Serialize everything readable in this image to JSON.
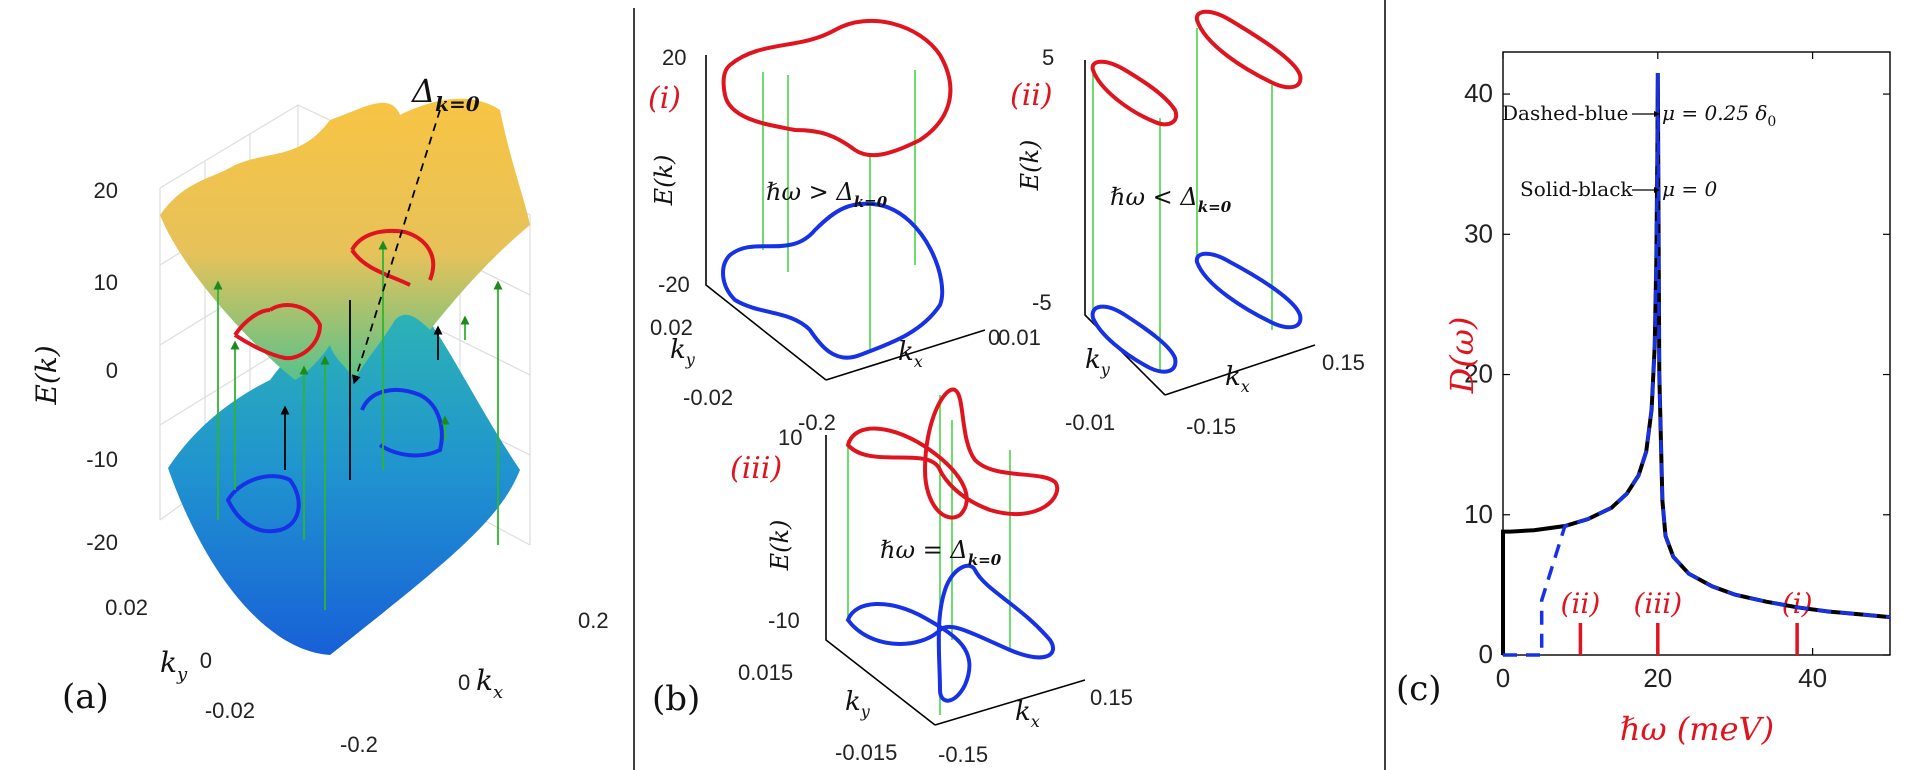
{
  "panels": {
    "a": {
      "label": "(a)",
      "zlabel": "E(k)",
      "zticks": [
        "20",
        "10",
        "0",
        "-10",
        "-20"
      ],
      "kylabel": "k",
      "kysub": "y",
      "kxlabel": "k",
      "kxsub": "x",
      "kyticks": [
        "0.02",
        "0",
        "-0.02"
      ],
      "kxticks": [
        "0.2",
        "0",
        "-0.2"
      ],
      "annotation": "Δ",
      "annotation_sub": "k=0"
    },
    "b": {
      "label": "(b)",
      "i": {
        "tag": "(i)",
        "zlabel": "E(k)",
        "zticks": [
          "20",
          "-20"
        ],
        "kyticks": [
          "0.02",
          "-0.02"
        ],
        "kxtick": "-0.2",
        "kx_right": "0",
        "kylabel": "k",
        "kysub": "y",
        "kxlabel": "k",
        "kxsub": "x",
        "relation": "ℏω > Δ",
        "relation_sub": "k=0"
      },
      "ii": {
        "tag": "(ii)",
        "zlabel": "E(k)",
        "zticks": [
          "5",
          "-5"
        ],
        "kyticks": [
          "0.01",
          "-0.01"
        ],
        "kxticks": [
          "0.15",
          "-0.15"
        ],
        "kylabel": "k",
        "kysub": "y",
        "kxlabel": "k",
        "kxsub": "x",
        "relation": "ℏω < Δ",
        "relation_sub": "k=0"
      },
      "iii": {
        "tag": "(iii)",
        "zlabel": "E(k)",
        "zticks": [
          "10",
          "-10"
        ],
        "kyticks": [
          "0.015",
          "-0.015"
        ],
        "kxticks": [
          "0.15",
          "-0.15"
        ],
        "kylabel": "k",
        "kysub": "y",
        "kxlabel": "k",
        "kxsub": "x",
        "relation": "ℏω = Δ",
        "relation_sub": "k=0"
      }
    },
    "c": {
      "label": "(c)",
      "ylabel": "D(ω)",
      "xlabel": "ℏω (meV)",
      "legend_dashed": "Dashed-blue",
      "legend_dashed_eq": "μ = 0.25 δ",
      "legend_dashed_sub": "0",
      "legend_solid": "Solid-black",
      "legend_solid_eq": "μ = 0",
      "markers": [
        "(ii)",
        "(iii)",
        "(i)"
      ]
    }
  },
  "colors": {
    "red": "#e0141e",
    "blue": "#1732e6",
    "green": "#2fd12f",
    "black": "#000000",
    "surface_top": "#f5c24a",
    "surface_bottom": "#1a6fd8"
  },
  "chart_data": [
    {
      "type": "line",
      "panel": "c",
      "xlabel": "ℏω (meV)",
      "ylabel": "D(ω)",
      "xlim": [
        0,
        50
      ],
      "ylim": [
        0,
        43
      ],
      "xticks": [
        0,
        20,
        40
      ],
      "yticks": [
        0,
        10,
        20,
        30,
        40
      ],
      "series": [
        {
          "name": "Solid-black",
          "color": "#000000",
          "style": "solid",
          "x": [
            0,
            0,
            1,
            4,
            8,
            11,
            14,
            16,
            17.5,
            18.5,
            19.2,
            19.6,
            19.8,
            19.95,
            20,
            20.05,
            20.2,
            20.6,
            21,
            22,
            24,
            27,
            30,
            34,
            38,
            42,
            46,
            50
          ],
          "y": [
            0,
            8.8,
            8.8,
            8.9,
            9.2,
            9.7,
            10.5,
            11.5,
            12.8,
            14.5,
            17.5,
            22,
            28,
            36,
            41.5,
            36,
            20,
            11,
            8.5,
            7,
            5.8,
            4.9,
            4.3,
            3.8,
            3.4,
            3.1,
            2.9,
            2.7
          ]
        },
        {
          "name": "Dashed-blue",
          "color": "#1732e6",
          "style": "dashed",
          "x": [
            0,
            5,
            5,
            8,
            11,
            14,
            16,
            17.5,
            18.5,
            19.2,
            19.6,
            19.8,
            19.95,
            20,
            20.05,
            20.2,
            20.6,
            21,
            22,
            24,
            27,
            30,
            34,
            38,
            42,
            46,
            50
          ],
          "y": [
            0,
            0,
            3.9,
            9.2,
            9.7,
            10.5,
            11.5,
            12.8,
            14.5,
            17.5,
            22,
            28,
            36,
            41.5,
            36,
            20,
            11,
            8.5,
            7,
            5.8,
            4.9,
            4.3,
            3.8,
            3.4,
            3.1,
            2.9,
            2.7
          ]
        }
      ],
      "markers": [
        {
          "label": "(ii)",
          "x": 10
        },
        {
          "label": "(iii)",
          "x": 20
        },
        {
          "label": "(i)",
          "x": 38
        }
      ]
    }
  ]
}
